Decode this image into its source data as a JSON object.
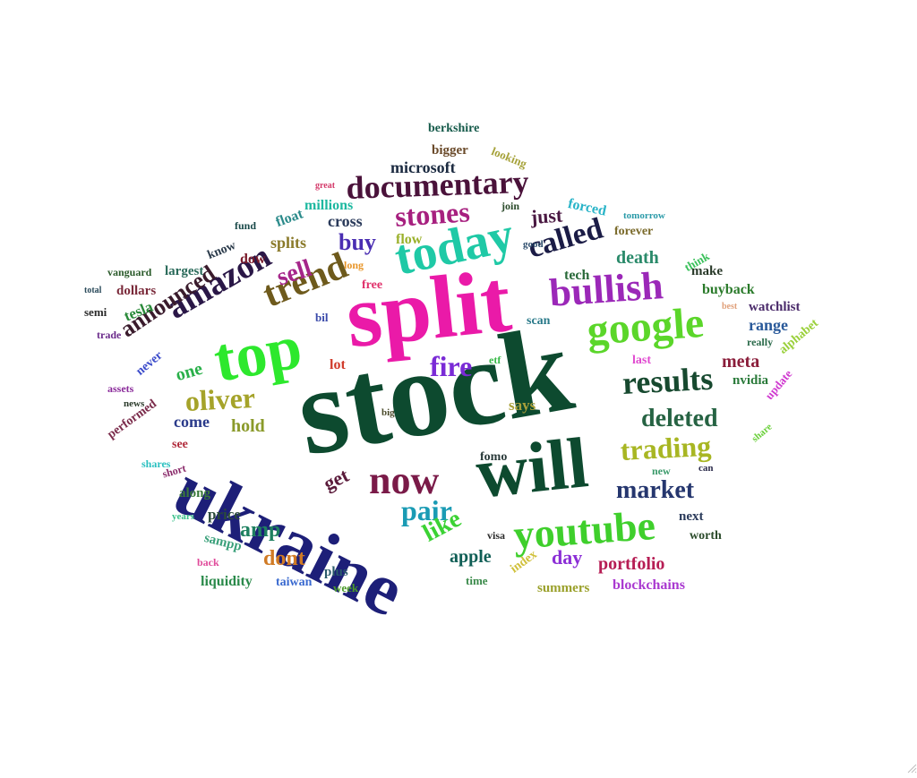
{
  "words": [
    {
      "text": "stock",
      "color": "#0d4a2f"
    },
    {
      "text": "split",
      "color": "#ea1aa8"
    },
    {
      "text": "ukraine",
      "color": "#1d1f78"
    },
    {
      "text": "will",
      "color": "#0d4a2f"
    },
    {
      "text": "top",
      "color": "#2de82d"
    },
    {
      "text": "today",
      "color": "#1fc9a6"
    },
    {
      "text": "google",
      "color": "#5bd62a"
    },
    {
      "text": "youtube",
      "color": "#3fcf2c"
    },
    {
      "text": "bullish",
      "color": "#9b28b8"
    },
    {
      "text": "documentary",
      "color": "#4a123a"
    },
    {
      "text": "trend",
      "color": "#6e5a1c"
    },
    {
      "text": "now",
      "color": "#7a1a48"
    },
    {
      "text": "amazon",
      "color": "#2a1747"
    },
    {
      "text": "results",
      "color": "#17492f"
    },
    {
      "text": "stones",
      "color": "#a7207f"
    },
    {
      "text": "called",
      "color": "#1b1c46"
    },
    {
      "text": "trading",
      "color": "#a8b623"
    },
    {
      "text": "deleted",
      "color": "#266343"
    },
    {
      "text": "market",
      "color": "#25366e"
    },
    {
      "text": "oliver",
      "color": "#a5a32a"
    },
    {
      "text": "fire",
      "color": "#7a2bd6"
    },
    {
      "text": "pair",
      "color": "#1a9bb4"
    },
    {
      "text": "announced",
      "color": "#3a1b2c"
    },
    {
      "text": "like",
      "color": "#3bd234"
    },
    {
      "text": "buy",
      "color": "#4a2eb2"
    },
    {
      "text": "sell",
      "color": "#a5268a"
    },
    {
      "text": "amp",
      "color": "#1e8060"
    },
    {
      "text": "dont",
      "color": "#d07a24"
    },
    {
      "text": "portfolio",
      "color": "#b61d54"
    },
    {
      "text": "day",
      "color": "#8b2ed6"
    },
    {
      "text": "apple",
      "color": "#0f5e55"
    },
    {
      "text": "meta",
      "color": "#8a1d3a"
    },
    {
      "text": "get",
      "color": "#5a1a3a"
    },
    {
      "text": "just",
      "color": "#4a1842"
    },
    {
      "text": "death",
      "color": "#2a8a6a"
    },
    {
      "text": "one",
      "color": "#2ab04a"
    },
    {
      "text": "hold",
      "color": "#8a9a2a"
    },
    {
      "text": "come",
      "color": "#2a3a8a"
    },
    {
      "text": "cross",
      "color": "#2a3a5a"
    },
    {
      "text": "microsoft",
      "color": "#1b2a40"
    },
    {
      "text": "berkshire",
      "color": "#155a4a"
    },
    {
      "text": "bigger",
      "color": "#6a4a2a"
    },
    {
      "text": "looking",
      "color": "#a6a23a"
    },
    {
      "text": "millions",
      "color": "#1db8a0"
    },
    {
      "text": "great",
      "color": "#d43a6a"
    },
    {
      "text": "join",
      "color": "#2a4a2a"
    },
    {
      "text": "forced",
      "color": "#2ab4c8"
    },
    {
      "text": "tomorrow",
      "color": "#2a9aa8"
    },
    {
      "text": "forever",
      "color": "#7a6a2a"
    },
    {
      "text": "flow",
      "color": "#9ab02a"
    },
    {
      "text": "float",
      "color": "#2a8a8a"
    },
    {
      "text": "fund",
      "color": "#1a4a4a"
    },
    {
      "text": "splits",
      "color": "#8a7a2a"
    },
    {
      "text": "know",
      "color": "#2a3a4a"
    },
    {
      "text": "dow",
      "color": "#7a1a2a"
    },
    {
      "text": "long",
      "color": "#e8962a"
    },
    {
      "text": "good",
      "color": "#2a4a6a"
    },
    {
      "text": "tech",
      "color": "#2a6a3a"
    },
    {
      "text": "think",
      "color": "#3ac05a"
    },
    {
      "text": "make",
      "color": "#2a3a2a"
    },
    {
      "text": "vanguard",
      "color": "#2a5a2a"
    },
    {
      "text": "largest",
      "color": "#2a6a5a"
    },
    {
      "text": "total",
      "color": "#2a4a5a"
    },
    {
      "text": "dollars",
      "color": "#7a2a3a"
    },
    {
      "text": "free",
      "color": "#e0306a"
    },
    {
      "text": "buyback",
      "color": "#2a7a2a"
    },
    {
      "text": "semi",
      "color": "#2a2a2a"
    },
    {
      "text": "tesla",
      "color": "#2a8a3a"
    },
    {
      "text": "best",
      "color": "#e0a07a"
    },
    {
      "text": "watchlist",
      "color": "#4a2a6a"
    },
    {
      "text": "bil",
      "color": "#3a4aaa"
    },
    {
      "text": "scan",
      "color": "#2a7a8a"
    },
    {
      "text": "range",
      "color": "#2a5a9a"
    },
    {
      "text": "really",
      "color": "#2a6a4a"
    },
    {
      "text": "trade",
      "color": "#6a2a8a"
    },
    {
      "text": "alphabet",
      "color": "#9ad03a"
    },
    {
      "text": "lot",
      "color": "#d03a2a"
    },
    {
      "text": "etf",
      "color": "#3aba4a"
    },
    {
      "text": "last",
      "color": "#e04ad0"
    },
    {
      "text": "assets",
      "color": "#8a2a9a"
    },
    {
      "text": "never",
      "color": "#3a4aca"
    },
    {
      "text": "nvidia",
      "color": "#2a7a3a"
    },
    {
      "text": "news",
      "color": "#2a3a2a"
    },
    {
      "text": "update",
      "color": "#d03ad0"
    },
    {
      "text": "performed",
      "color": "#7a2a4a"
    },
    {
      "text": "big",
      "color": "#4a4a2a"
    },
    {
      "text": "says",
      "color": "#aaa03a"
    },
    {
      "text": "see",
      "color": "#b02a3a"
    },
    {
      "text": "fomo",
      "color": "#2a3a3a"
    },
    {
      "text": "shares",
      "color": "#2ac0c0"
    },
    {
      "text": "new",
      "color": "#3a9a6a"
    },
    {
      "text": "can",
      "color": "#2a2a4a"
    },
    {
      "text": "share",
      "color": "#6ad03a"
    },
    {
      "text": "short",
      "color": "#8a2a6a"
    },
    {
      "text": "along",
      "color": "#3a7a3a"
    },
    {
      "text": "years",
      "color": "#3ac08a"
    },
    {
      "text": "price",
      "color": "#2a4a3a"
    },
    {
      "text": "next",
      "color": "#2a3a5a"
    },
    {
      "text": "sampp",
      "color": "#3aa07a"
    },
    {
      "text": "visa",
      "color": "#2a2a2a"
    },
    {
      "text": "worth",
      "color": "#2a4a2a"
    },
    {
      "text": "back",
      "color": "#e04a9a"
    },
    {
      "text": "plus",
      "color": "#2a5a6a"
    },
    {
      "text": "index",
      "color": "#d0c03a"
    },
    {
      "text": "liquidity",
      "color": "#2a8a4a"
    },
    {
      "text": "taiwan",
      "color": "#3a6ad0"
    },
    {
      "text": "week",
      "color": "#4a9a2a"
    },
    {
      "text": "time",
      "color": "#3a8a4a"
    },
    {
      "text": "summers",
      "color": "#9aa02a"
    },
    {
      "text": "blockchains",
      "color": "#aa3ad0"
    }
  ]
}
